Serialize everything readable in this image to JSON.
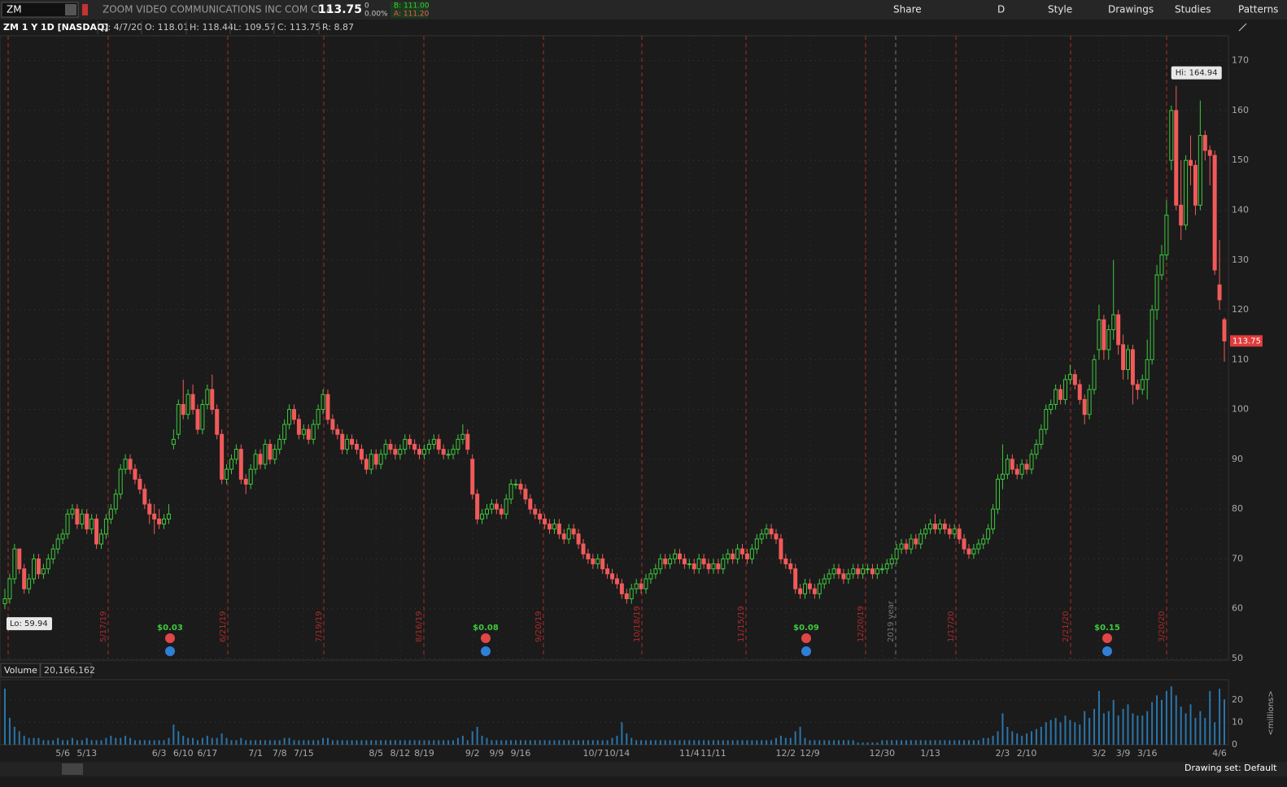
{
  "header": {
    "symbol": "ZM",
    "company": "ZOOM VIDEO COMMUNICATIONS INC COM CL A",
    "last": "113.75",
    "change": "0",
    "change_pct": "0.00%",
    "bid": "B: 111.00",
    "ask": "A: 111.20",
    "buttons": [
      "Share",
      "D",
      "Style",
      "Drawings",
      "Studies",
      "Patterns"
    ]
  },
  "info": [
    "D: 4/7/20",
    "O: 118.01",
    "H: 118.44",
    "L: 109.57",
    "C: 113.75",
    "R: 8.87"
  ],
  "footer": {
    "drawing_set": "Drawing set: Default"
  },
  "chart_data": {
    "type": "candlestick",
    "title": "ZM 1 Y 1D [NASDAQ]",
    "categories": [
      null,
      null,
      null,
      null,
      null,
      null,
      null,
      null,
      null,
      null,
      null,
      null,
      "5/6",
      null,
      null,
      null,
      null,
      "5/13",
      null,
      null,
      null,
      null,
      null,
      null,
      null,
      null,
      null,
      null,
      null,
      null,
      null,
      null,
      "6/3",
      null,
      null,
      null,
      null,
      "6/10",
      null,
      null,
      null,
      null,
      "6/17",
      null,
      null,
      null,
      null,
      null,
      null,
      null,
      null,
      null,
      "7/1",
      null,
      null,
      null,
      null,
      "7/8",
      null,
      null,
      null,
      null,
      "7/15",
      null,
      null,
      null,
      null,
      null,
      null,
      null,
      null,
      null,
      null,
      null,
      null,
      null,
      null,
      "8/5",
      null,
      null,
      null,
      null,
      "8/12",
      null,
      null,
      null,
      null,
      "8/19",
      null,
      null,
      null,
      null,
      null,
      null,
      null,
      null,
      null,
      "9/2",
      null,
      null,
      null,
      null,
      "9/9",
      null,
      null,
      null,
      null,
      "9/16",
      null,
      null,
      null,
      null,
      null,
      null,
      null,
      null,
      null,
      null,
      null,
      null,
      null,
      null,
      "10/7",
      null,
      null,
      null,
      null,
      "10/14",
      null,
      null,
      null,
      null,
      null,
      null,
      null,
      null,
      null,
      null,
      null,
      null,
      null,
      null,
      "11/4",
      null,
      null,
      null,
      null,
      "11/11",
      null,
      null,
      null,
      null,
      null,
      null,
      null,
      null,
      null,
      null,
      null,
      null,
      null,
      null,
      "12/2",
      null,
      null,
      null,
      null,
      "12/9",
      null,
      null,
      null,
      null,
      null,
      null,
      null,
      null,
      null,
      null,
      null,
      null,
      null,
      null,
      "12/30",
      null,
      null,
      null,
      null,
      null,
      null,
      null,
      null,
      null,
      "1/13",
      null,
      null,
      null,
      null,
      null,
      null,
      null,
      null,
      null,
      null,
      null,
      null,
      null,
      null,
      "2/3",
      null,
      null,
      null,
      null,
      "2/10",
      null,
      null,
      null,
      null,
      null,
      null,
      null,
      null,
      null,
      null,
      null,
      null,
      null,
      null,
      "3/2",
      null,
      null,
      null,
      null,
      "3/9",
      null,
      null,
      null,
      null,
      "3/16",
      null,
      null,
      null,
      null,
      null,
      null,
      null,
      null,
      null,
      null,
      null,
      null,
      null,
      null,
      "4/6",
      null
    ],
    "open": [
      61,
      62,
      66,
      72,
      68,
      64,
      66,
      70,
      67,
      68,
      70,
      72,
      74,
      75,
      79,
      80,
      77,
      79,
      76,
      78,
      73,
      75,
      78,
      80,
      83,
      88,
      90,
      88,
      86,
      84,
      81,
      79,
      78,
      77,
      78,
      93,
      95,
      101,
      99,
      103,
      100,
      96,
      101,
      104,
      100,
      95,
      86,
      88,
      90,
      92,
      86,
      85,
      88,
      91,
      89,
      93,
      90,
      92,
      94,
      97,
      100,
      98,
      95,
      96,
      94,
      97,
      100,
      103,
      98,
      96,
      95,
      92,
      94,
      93,
      92,
      90,
      88,
      91,
      89,
      91,
      93,
      92,
      91,
      92,
      94,
      93,
      92,
      91,
      92,
      93,
      94,
      92,
      91,
      91,
      92,
      94,
      95,
      90,
      83,
      78,
      79,
      80,
      81,
      80,
      79,
      82,
      85,
      85,
      84,
      82,
      80,
      79,
      78,
      77,
      76,
      77,
      75,
      74,
      76,
      75,
      73,
      71,
      70,
      69,
      70,
      68,
      67,
      66,
      65,
      63,
      62,
      64,
      65,
      64,
      66,
      67,
      68,
      70,
      69,
      70,
      71,
      70,
      69,
      69,
      68,
      70,
      69,
      68,
      69,
      68,
      70,
      71,
      70,
      72,
      71,
      70,
      72,
      74,
      75,
      76,
      75,
      74,
      70,
      69,
      68,
      64,
      63,
      65,
      64,
      63,
      65,
      66,
      67,
      68,
      67,
      66,
      67,
      68,
      67,
      68,
      68,
      67,
      68,
      68,
      69,
      70,
      72,
      73,
      72,
      74,
      73,
      75,
      76,
      77,
      76,
      77,
      76,
      75,
      76,
      74,
      72,
      71,
      72,
      73,
      74,
      76,
      80,
      86,
      87,
      90,
      88,
      87,
      89,
      88,
      91,
      93,
      96,
      100,
      101,
      104,
      102,
      106,
      107,
      105,
      102,
      99,
      104,
      112,
      118,
      112,
      116,
      119,
      113,
      108,
      112,
      105,
      104,
      106,
      110,
      120,
      127,
      131,
      150,
      160,
      141,
      137,
      150,
      149,
      141,
      155,
      152,
      151,
      125,
      118.01
    ],
    "high": [
      64,
      67,
      73,
      72,
      69,
      67,
      71,
      71,
      69,
      71,
      73,
      75,
      76,
      80,
      81,
      81,
      80,
      80,
      79,
      79,
      76,
      79,
      81,
      84,
      89,
      91,
      91,
      89,
      87,
      85,
      82,
      81,
      80,
      79,
      81,
      96,
      102,
      106,
      104,
      105,
      101,
      102,
      105,
      107,
      101,
      96,
      89,
      91,
      93,
      93,
      87,
      89,
      92,
      92,
      94,
      94,
      93,
      95,
      98,
      101,
      101,
      99,
      97,
      97,
      98,
      101,
      104,
      104,
      99,
      97,
      96,
      95,
      95,
      94,
      93,
      91,
      92,
      92,
      92,
      94,
      94,
      93,
      93,
      95,
      95,
      94,
      93,
      93,
      94,
      95,
      95,
      93,
      92,
      93,
      95,
      97,
      96,
      91,
      84,
      80,
      81,
      82,
      82,
      81,
      83,
      86,
      86,
      86,
      85,
      83,
      81,
      80,
      79,
      78,
      78,
      78,
      76,
      77,
      77,
      76,
      74,
      72,
      71,
      71,
      71,
      69,
      68,
      67,
      66,
      64,
      65,
      66,
      66,
      67,
      68,
      69,
      71,
      71,
      71,
      72,
      72,
      71,
      70,
      70,
      71,
      71,
      70,
      70,
      70,
      71,
      72,
      72,
      73,
      73,
      72,
      73,
      75,
      76,
      77,
      77,
      76,
      75,
      71,
      70,
      69,
      65,
      66,
      66,
      65,
      66,
      67,
      68,
      69,
      69,
      68,
      68,
      69,
      69,
      69,
      69,
      69,
      69,
      69,
      70,
      71,
      73,
      74,
      74,
      75,
      75,
      76,
      77,
      78,
      79,
      78,
      78,
      77,
      77,
      77,
      75,
      73,
      73,
      74,
      75,
      77,
      81,
      87,
      93,
      91,
      91,
      89,
      90,
      90,
      92,
      94,
      97,
      101,
      102,
      105,
      105,
      107,
      109,
      108,
      106,
      103,
      105,
      111,
      121,
      119,
      117,
      130,
      120,
      115,
      113,
      113,
      106,
      107,
      114,
      121,
      129,
      133,
      142,
      161,
      164.94,
      150,
      151,
      155,
      150,
      162,
      156,
      153,
      152,
      134,
      118.44
    ],
    "low": [
      59.94,
      61,
      65,
      67,
      63,
      63,
      65,
      66,
      66,
      67,
      69,
      71,
      73,
      74,
      78,
      76,
      76,
      75,
      75,
      72,
      72,
      74,
      77,
      79,
      82,
      87,
      87,
      85,
      83,
      80,
      77,
      75,
      76,
      76,
      77,
      92,
      94,
      98,
      98,
      99,
      95,
      95,
      100,
      99,
      94,
      85,
      85,
      87,
      89,
      85,
      83,
      84,
      87,
      88,
      88,
      89,
      89,
      91,
      93,
      96,
      97,
      94,
      94,
      93,
      93,
      96,
      99,
      97,
      95,
      94,
      91,
      91,
      92,
      91,
      89,
      87,
      87,
      88,
      88,
      90,
      91,
      90,
      90,
      91,
      92,
      91,
      90,
      90,
      91,
      92,
      91,
      90,
      90,
      90,
      91,
      93,
      91,
      82,
      77,
      77,
      78,
      79,
      79,
      78,
      78,
      81,
      84,
      83,
      81,
      79,
      78,
      77,
      76,
      75,
      75,
      74,
      73,
      73,
      74,
      72,
      70,
      69,
      68,
      68,
      67,
      66,
      65,
      64,
      62,
      61,
      61,
      63,
      63,
      63,
      65,
      66,
      67,
      68,
      68,
      69,
      69,
      68,
      68,
      67,
      67,
      68,
      67,
      67,
      67,
      67,
      69,
      69,
      69,
      70,
      69,
      69,
      71,
      73,
      74,
      74,
      73,
      69,
      68,
      67,
      63,
      62,
      62,
      63,
      62,
      62,
      64,
      65,
      66,
      66,
      65,
      65,
      66,
      66,
      66,
      67,
      66,
      66,
      67,
      67,
      68,
      69,
      71,
      71,
      71,
      72,
      72,
      74,
      75,
      75,
      75,
      75,
      74,
      74,
      73,
      71,
      70,
      70,
      71,
      72,
      73,
      75,
      79,
      84,
      86,
      87,
      86,
      86,
      87,
      87,
      90,
      92,
      95,
      99,
      100,
      101,
      101,
      105,
      104,
      101,
      97,
      98,
      103,
      110,
      110,
      110,
      114,
      111,
      106,
      106,
      101,
      102,
      103,
      102,
      109,
      118,
      126,
      130,
      148,
      140,
      134,
      136,
      145,
      139,
      140,
      150,
      145,
      127,
      120,
      109.57
    ],
    "close": [
      62,
      66,
      72,
      68,
      64,
      66,
      70,
      67,
      68,
      70,
      72,
      74,
      75,
      79,
      80,
      77,
      79,
      76,
      78,
      73,
      75,
      78,
      80,
      83,
      88,
      90,
      88,
      86,
      84,
      81,
      79,
      78,
      77,
      78,
      79,
      94,
      101,
      99,
      103,
      100,
      96,
      101,
      104,
      100,
      95,
      86,
      88,
      90,
      92,
      86,
      85,
      88,
      91,
      89,
      93,
      90,
      92,
      94,
      97,
      100,
      98,
      95,
      96,
      94,
      97,
      100,
      103,
      98,
      96,
      95,
      92,
      94,
      93,
      92,
      90,
      88,
      91,
      89,
      91,
      93,
      92,
      91,
      92,
      94,
      93,
      92,
      91,
      92,
      93,
      94,
      92,
      91,
      91,
      92,
      94,
      95,
      92,
      83,
      78,
      79,
      80,
      81,
      80,
      79,
      82,
      85,
      85,
      84,
      82,
      80,
      79,
      78,
      77,
      76,
      77,
      75,
      74,
      76,
      75,
      73,
      71,
      70,
      69,
      70,
      68,
      67,
      66,
      65,
      63,
      62,
      64,
      65,
      64,
      66,
      67,
      68,
      70,
      69,
      70,
      71,
      70,
      69,
      69,
      68,
      70,
      69,
      68,
      69,
      68,
      70,
      71,
      70,
      72,
      71,
      70,
      72,
      74,
      75,
      76,
      75,
      74,
      70,
      69,
      68,
      64,
      63,
      65,
      64,
      63,
      65,
      66,
      67,
      68,
      67,
      66,
      67,
      68,
      67,
      68,
      68,
      67,
      68,
      68,
      69,
      70,
      72,
      73,
      72,
      74,
      73,
      75,
      76,
      77,
      76,
      77,
      76,
      75,
      76,
      74,
      72,
      71,
      72,
      73,
      74,
      76,
      80,
      86,
      87,
      90,
      88,
      87,
      89,
      88,
      91,
      93,
      96,
      100,
      101,
      104,
      102,
      106,
      107,
      105,
      102,
      99,
      104,
      110,
      118,
      112,
      116,
      119,
      113,
      108,
      112,
      105,
      104,
      106,
      110,
      120,
      127,
      131,
      139,
      160,
      141,
      137,
      150,
      149,
      141,
      155,
      152,
      151,
      128,
      122,
      113.75
    ],
    "up_color": "#3ec93e",
    "down_color": "#f05a5a",
    "ylim": [
      50,
      175
    ],
    "yticks": [
      50,
      60,
      70,
      80,
      90,
      100,
      110,
      120,
      130,
      140,
      150,
      160,
      170
    ],
    "grid": true,
    "hi_label": "Hi: 164.94",
    "lo_label": "Lo: 59.94",
    "expirations": [
      "5/17/19",
      "6/21/19",
      "7/19/19",
      "8/16/19",
      "9/20/19",
      "10/18/19",
      "11/15/19",
      "12/20/19",
      "2019 year",
      "1/17/20",
      "2/21/20",
      "3/20/20"
    ],
    "events": [
      "$0.03",
      "$0.08",
      "$0.09",
      "$0.15"
    ],
    "volume": {
      "label": "Volume",
      "readout": "20,166,162",
      "unit": "<millions>",
      "color": "#2b74a8",
      "ylim": [
        0,
        29
      ],
      "yticks": [
        0,
        10,
        20
      ],
      "values": [
        25,
        12,
        8,
        6,
        4,
        3,
        3,
        3,
        2,
        2,
        2,
        3,
        2,
        2,
        3,
        2,
        2,
        3,
        2,
        2,
        2,
        3,
        4,
        3,
        3,
        4,
        3,
        2,
        2,
        2,
        2,
        2,
        2,
        2,
        3,
        9,
        6,
        4,
        3,
        3,
        2,
        3,
        4,
        3,
        3,
        5,
        3,
        2,
        2,
        3,
        2,
        2,
        2,
        2,
        2,
        2,
        2,
        2,
        3,
        3,
        2,
        2,
        2,
        2,
        2,
        2,
        3,
        3,
        2,
        2,
        2,
        2,
        2,
        2,
        2,
        2,
        2,
        2,
        2,
        2,
        2,
        2,
        2,
        2,
        2,
        2,
        2,
        2,
        2,
        2,
        2,
        2,
        2,
        2,
        3,
        4,
        2,
        6,
        8,
        4,
        3,
        2,
        2,
        2,
        2,
        2,
        2,
        2,
        2,
        2,
        2,
        2,
        2,
        2,
        2,
        2,
        2,
        2,
        2,
        2,
        2,
        2,
        2,
        2,
        2,
        2,
        3,
        4,
        10,
        5,
        3,
        2,
        2,
        2,
        2,
        2,
        2,
        2,
        2,
        2,
        2,
        2,
        2,
        2,
        2,
        2,
        2,
        2,
        2,
        2,
        2,
        2,
        2,
        2,
        2,
        2,
        2,
        2,
        2,
        2,
        3,
        4,
        3,
        3,
        6,
        8,
        3,
        2,
        2,
        2,
        2,
        2,
        2,
        2,
        2,
        2,
        2,
        1,
        1,
        1,
        1,
        1,
        2,
        2,
        2,
        2,
        2,
        2,
        2,
        2,
        2,
        2,
        2,
        2,
        2,
        2,
        2,
        2,
        2,
        2,
        2,
        2,
        2,
        3,
        3,
        4,
        6,
        14,
        8,
        6,
        5,
        4,
        5,
        6,
        7,
        8,
        10,
        11,
        12,
        10,
        13,
        11,
        10,
        9,
        15,
        12,
        16,
        24,
        14,
        15,
        20,
        13,
        16,
        18,
        14,
        13,
        13,
        15,
        19,
        22,
        20,
        24,
        26,
        22,
        17,
        14,
        18,
        12,
        15,
        12,
        24,
        10,
        25,
        20.17
      ]
    }
  }
}
